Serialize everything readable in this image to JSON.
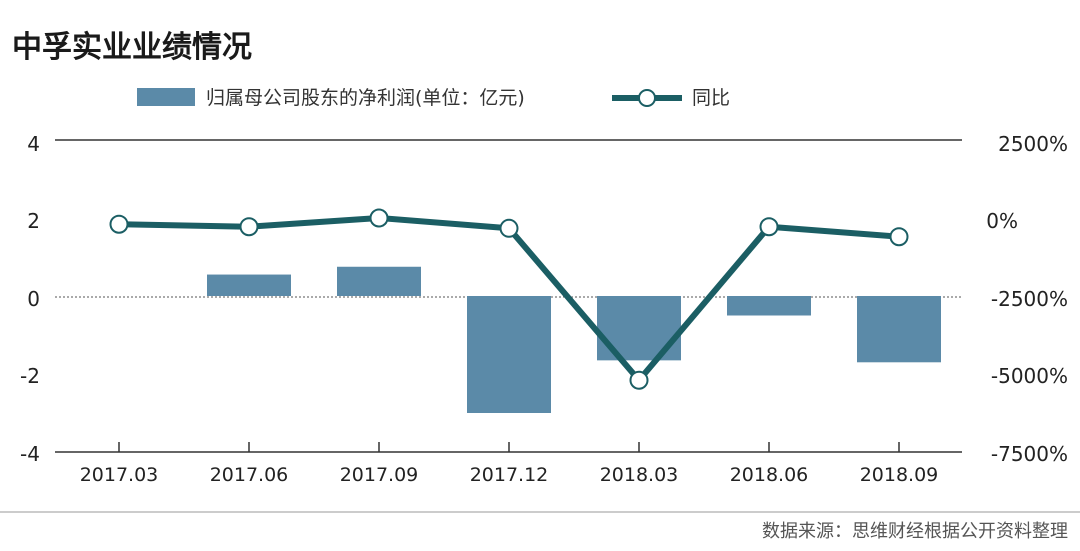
{
  "chart_data": {
    "type": "bar",
    "title": "中孚实业业绩情况",
    "source": "数据来源：思维财经根据公开资料整理",
    "categories": [
      "2017.03",
      "2017.06",
      "2017.09",
      "2017.12",
      "2018.03",
      "2018.06",
      "2018.09"
    ],
    "series": [
      {
        "name": "归属母公司股东的净利润(单位：亿元)",
        "type": "bar",
        "axis": "left",
        "values": [
          0,
          0.55,
          0.75,
          -3.0,
          -1.65,
          -0.5,
          -1.7
        ]
      },
      {
        "name": "同比",
        "type": "line",
        "axis": "right",
        "values": [
          -200,
          -280,
          0,
          -330,
          -5200,
          -280,
          -600
        ]
      }
    ],
    "left_axis": {
      "ylim": [
        -4,
        4
      ],
      "ticks": [
        "4",
        "2",
        "0",
        "-2",
        "-4"
      ]
    },
    "right_axis": {
      "ylim": [
        -7500,
        2500
      ],
      "ticks": [
        "2500%",
        "0%",
        "-2500%",
        "-5000%",
        "-7500%"
      ]
    },
    "colors": {
      "bar": "#5b8aa8",
      "line": "#1b5e64",
      "marker_fill": "#ffffff",
      "divider": "#bbbbbb"
    },
    "legend_placement": "top-center",
    "grid": false
  }
}
